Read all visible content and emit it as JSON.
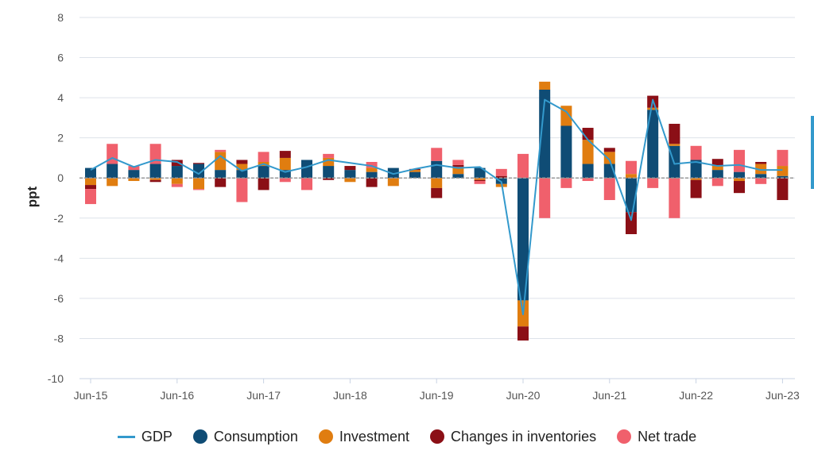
{
  "chart_data": {
    "type": "bar",
    "ylabel": "ppt",
    "ylim": [
      -10,
      8
    ],
    "yticks": [
      "8",
      "6",
      "4",
      "2",
      "0",
      "-2",
      "-4",
      "-6",
      "-8",
      "-10"
    ],
    "grid": true,
    "legend_position": "bottom",
    "x_tick_labels": [
      {
        "label": "Jun-15",
        "index": 0
      },
      {
        "label": "Jun-16",
        "index": 4
      },
      {
        "label": "Jun-17",
        "index": 8
      },
      {
        "label": "Jun-18",
        "index": 12
      },
      {
        "label": "Jun-19",
        "index": 16
      },
      {
        "label": "Jun-20",
        "index": 20
      },
      {
        "label": "Jun-21",
        "index": 24
      },
      {
        "label": "Jun-22",
        "index": 28
      },
      {
        "label": "Jun-23",
        "index": 32
      }
    ],
    "categories": [
      "Jun-15",
      "Sep-15",
      "Dec-15",
      "Mar-16",
      "Jun-16",
      "Sep-16",
      "Dec-16",
      "Mar-17",
      "Jun-17",
      "Sep-17",
      "Dec-17",
      "Mar-18",
      "Jun-18",
      "Sep-18",
      "Dec-18",
      "Mar-19",
      "Jun-19",
      "Sep-19",
      "Dec-19",
      "Mar-20",
      "Jun-20",
      "Sep-20",
      "Dec-20",
      "Mar-21",
      "Jun-21",
      "Sep-21",
      "Dec-21",
      "Mar-22",
      "Jun-22",
      "Sep-22",
      "Dec-22",
      "Mar-23",
      "Jun-23"
    ],
    "series": [
      {
        "name": "Consumption",
        "color": "#0f4c75",
        "values": [
          0.5,
          0.7,
          0.4,
          0.7,
          0.6,
          0.7,
          0.4,
          0.4,
          0.6,
          0.4,
          0.9,
          0.6,
          0.4,
          0.3,
          0.5,
          0.3,
          0.85,
          0.2,
          0.5,
          -0.3,
          -6.1,
          4.4,
          2.6,
          0.7,
          0.7,
          -1.7,
          3.4,
          1.6,
          0.9,
          0.4,
          0.3,
          0.2,
          0.1
        ]
      },
      {
        "name": "Investment",
        "color": "#e07d10",
        "values": [
          -0.35,
          -0.4,
          -0.15,
          -0.1,
          -0.3,
          -0.55,
          0.9,
          0.3,
          0.2,
          0.6,
          0,
          0.4,
          -0.2,
          0.2,
          -0.4,
          0.1,
          -0.5,
          0.35,
          -0.1,
          -0.15,
          -1.3,
          0.4,
          1.0,
          1.2,
          0.6,
          0.2,
          0.1,
          0.1,
          -0.1,
          0.2,
          -0.15,
          0.5,
          0.5
        ]
      },
      {
        "name": "Changes in inventories",
        "color": "#8b0f16",
        "values": [
          -0.2,
          0,
          0,
          -0.1,
          0.3,
          0.05,
          -0.45,
          0.2,
          -0.6,
          0.35,
          0,
          -0.1,
          0.2,
          -0.45,
          0,
          0.05,
          -0.5,
          0.1,
          -0.05,
          0.1,
          -0.7,
          0,
          0,
          0.6,
          0.2,
          -1.1,
          0.6,
          1.0,
          -0.9,
          0.35,
          -0.6,
          0.1,
          -1.1
        ]
      },
      {
        "name": "Net trade",
        "color": "#f0606c",
        "values": [
          -0.75,
          1.0,
          0.2,
          1.0,
          -0.15,
          -0.05,
          0.1,
          -1.2,
          0.5,
          -0.2,
          -0.6,
          0.2,
          0,
          0.3,
          0,
          0,
          0.65,
          0.25,
          -0.15,
          0.35,
          1.2,
          -2.0,
          -0.5,
          -0.15,
          -1.1,
          0.65,
          -0.5,
          -2.0,
          0.7,
          -0.4,
          1.1,
          -0.3,
          0.8
        ]
      }
    ],
    "line_series": {
      "name": "GDP",
      "color": "#3399cc",
      "values": [
        0.4,
        1.0,
        0.55,
        0.9,
        0.8,
        0.2,
        1.1,
        0.35,
        0.7,
        0.3,
        0.55,
        0.9,
        0.75,
        0.6,
        0.2,
        0.45,
        0.65,
        0.5,
        0.55,
        -0.2,
        -6.8,
        3.9,
        3.3,
        1.9,
        0.9,
        -2.1,
        3.9,
        0.7,
        0.8,
        0.6,
        0.65,
        0.4,
        0.4
      ]
    },
    "legend": [
      {
        "name": "GDP",
        "kind": "line",
        "color": "#3399cc"
      },
      {
        "name": "Consumption",
        "kind": "dot",
        "color": "#0f4c75"
      },
      {
        "name": "Investment",
        "kind": "dot",
        "color": "#e07d10"
      },
      {
        "name": "Changes in inventories",
        "kind": "dot",
        "color": "#8b0f16"
      },
      {
        "name": "Net trade",
        "kind": "dot",
        "color": "#f0606c"
      }
    ]
  },
  "colors": {
    "edge_mark": "#3399cc",
    "grid": "#dde2ea",
    "zero_line": "#999999"
  }
}
